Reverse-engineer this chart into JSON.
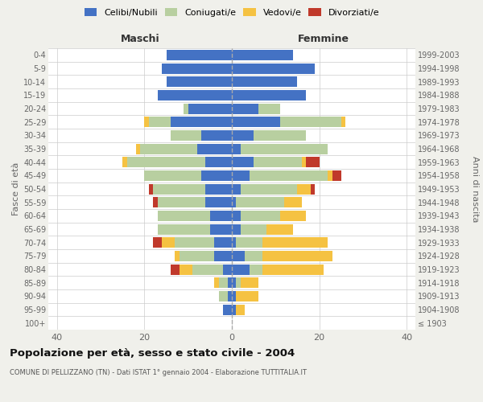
{
  "age_groups": [
    "100+",
    "95-99",
    "90-94",
    "85-89",
    "80-84",
    "75-79",
    "70-74",
    "65-69",
    "60-64",
    "55-59",
    "50-54",
    "45-49",
    "40-44",
    "35-39",
    "30-34",
    "25-29",
    "20-24",
    "15-19",
    "10-14",
    "5-9",
    "0-4"
  ],
  "birth_years": [
    "≤ 1903",
    "1904-1908",
    "1909-1913",
    "1914-1918",
    "1919-1923",
    "1924-1928",
    "1929-1933",
    "1934-1938",
    "1939-1943",
    "1944-1948",
    "1949-1953",
    "1954-1958",
    "1959-1963",
    "1964-1968",
    "1969-1973",
    "1974-1978",
    "1979-1983",
    "1984-1988",
    "1989-1993",
    "1994-1998",
    "1999-2003"
  ],
  "maschi": {
    "celibi": [
      0,
      2,
      1,
      1,
      2,
      4,
      4,
      5,
      5,
      6,
      6,
      7,
      6,
      8,
      7,
      14,
      10,
      17,
      15,
      16,
      15
    ],
    "coniugati": [
      0,
      0,
      2,
      2,
      7,
      8,
      9,
      12,
      12,
      11,
      12,
      13,
      18,
      13,
      7,
      5,
      1,
      0,
      0,
      0,
      0
    ],
    "vedovi": [
      0,
      0,
      0,
      1,
      3,
      1,
      3,
      0,
      0,
      0,
      0,
      0,
      1,
      1,
      0,
      1,
      0,
      0,
      0,
      0,
      0
    ],
    "divorziati": [
      0,
      0,
      0,
      0,
      2,
      0,
      2,
      0,
      0,
      1,
      1,
      0,
      0,
      0,
      0,
      0,
      0,
      0,
      0,
      0,
      0
    ]
  },
  "femmine": {
    "nubili": [
      0,
      1,
      1,
      1,
      4,
      3,
      1,
      2,
      2,
      1,
      2,
      4,
      5,
      2,
      5,
      11,
      6,
      17,
      15,
      19,
      14
    ],
    "coniugate": [
      0,
      0,
      0,
      1,
      3,
      4,
      6,
      6,
      9,
      11,
      13,
      18,
      11,
      20,
      12,
      14,
      5,
      0,
      0,
      0,
      0
    ],
    "vedove": [
      0,
      2,
      5,
      4,
      14,
      16,
      15,
      6,
      6,
      4,
      3,
      1,
      1,
      0,
      0,
      1,
      0,
      0,
      0,
      0,
      0
    ],
    "divorziate": [
      0,
      0,
      0,
      0,
      0,
      0,
      0,
      0,
      0,
      0,
      1,
      2,
      3,
      0,
      0,
      0,
      0,
      0,
      0,
      0,
      0
    ]
  },
  "colors": {
    "celibi": "#4472c4",
    "coniugati": "#b8cfa0",
    "vedovi": "#f5c242",
    "divorziati": "#c0392b"
  },
  "xlim": 42,
  "title": "Popolazione per età, sesso e stato civile - 2004",
  "subtitle": "COMUNE DI PELLIZZANO (TN) - Dati ISTAT 1° gennaio 2004 - Elaborazione TUTTITALIA.IT",
  "ylabel": "Fasce di età",
  "ylabel_right": "Anni di nascita",
  "xlabel_maschi": "Maschi",
  "xlabel_femmine": "Femmine",
  "legend_labels": [
    "Celibi/Nubili",
    "Coniugati/e",
    "Vedovi/e",
    "Divorziati/e"
  ],
  "bg_color": "#f0f0eb",
  "bar_bg_color": "#ffffff",
  "grid_color": "#cccccc"
}
